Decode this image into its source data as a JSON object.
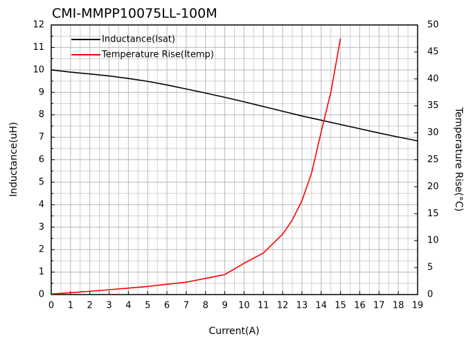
{
  "chart_data": {
    "type": "line",
    "title": "CMI-MMPP10075LL-100M",
    "x_label": "Current(A)",
    "y_label": "Inductance(uH)",
    "y2_label": "Temperature Rise(°C)",
    "xlim": [
      0,
      19
    ],
    "xticks": [
      0,
      1,
      2,
      3,
      4,
      5,
      6,
      7,
      8,
      9,
      10,
      11,
      12,
      13,
      14,
      15,
      16,
      17,
      18,
      19
    ],
    "ylim": [
      0,
      12
    ],
    "yticks": [
      0,
      1,
      2,
      3,
      4,
      5,
      6,
      7,
      8,
      9,
      10,
      11,
      12
    ],
    "y2lim": [
      0,
      50
    ],
    "y2ticks": [
      0,
      5,
      10,
      15,
      20,
      25,
      30,
      35,
      40,
      45,
      50
    ],
    "grid": true,
    "minor_grid": true,
    "legend": "upper left",
    "series": [
      {
        "name": "Inductance(Isat)",
        "color": "#000000",
        "x": [
          0,
          1,
          2,
          3,
          4,
          5,
          6,
          7,
          8,
          9,
          10,
          11,
          12,
          13,
          14,
          15,
          16,
          17,
          18,
          19
        ],
        "values": [
          10,
          9.9,
          9.82,
          9.73,
          9.62,
          9.49,
          9.33,
          9.15,
          8.97,
          8.78,
          8.58,
          8.37,
          8.16,
          7.95,
          7.76,
          7.57,
          7.38,
          7.19,
          7.01,
          6.84
        ]
      },
      {
        "name": "Temperature Rise(Itemp)",
        "color": "#ff0000",
        "axis": "y2",
        "x": [
          0,
          1,
          2,
          3,
          4,
          5,
          6,
          7,
          8,
          9,
          10,
          11,
          12,
          12.5,
          13,
          13.5,
          14,
          14.5,
          15
        ],
        "values": [
          0.1,
          0.35,
          0.6,
          0.9,
          1.2,
          1.5,
          1.9,
          2.3,
          3.0,
          3.7,
          5.8,
          7.7,
          11.2,
          13.8,
          17.4,
          22.5,
          30.2,
          37.5,
          47.5
        ]
      }
    ]
  }
}
